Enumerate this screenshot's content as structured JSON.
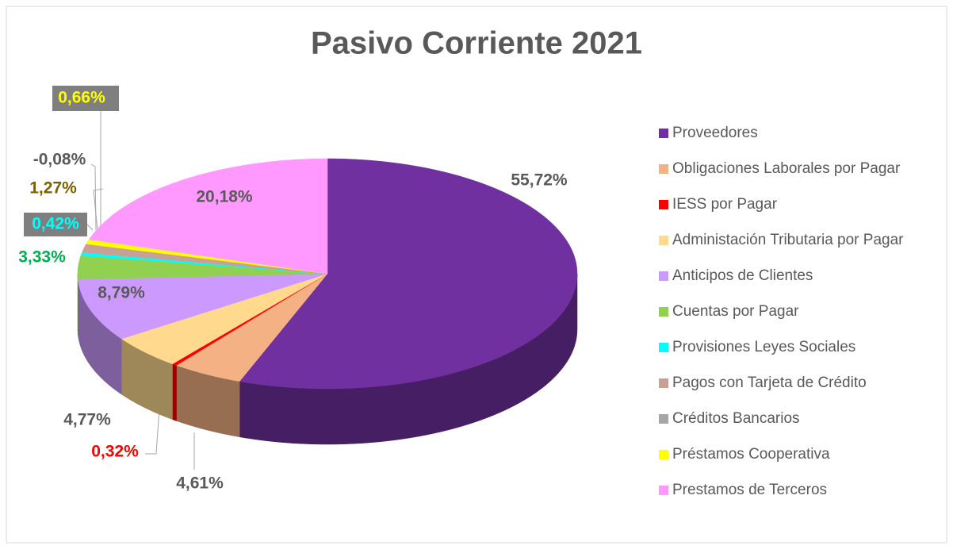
{
  "chart_data": {
    "type": "pie",
    "title": "Pasivo Corriente 2021",
    "categories": [
      "Proveedores",
      "Obligaciones Laborales por Pagar",
      "IESS por Pagar",
      "Administación Tributaria por Pagar",
      "Anticipos de Clientes",
      "Cuentas por Pagar",
      "Provisiones Leyes Sociales",
      "Pagos con Tarjeta de Crédito",
      "Créditos Bancarios",
      "Préstamos Cooperativa",
      "Prestamos de Terceros"
    ],
    "values": [
      55.72,
      4.61,
      0.32,
      4.77,
      8.79,
      3.33,
      0.42,
      1.27,
      -0.08,
      0.66,
      20.18
    ],
    "value_labels": [
      "55,72%",
      "4,61%",
      "0,32%",
      "4,77%",
      "8,79%",
      "3,33%",
      "0,42%",
      "1,27%",
      "-0,08%",
      "0,66%",
      "20,18%"
    ],
    "colors": [
      "#7030a0",
      "#f4b183",
      "#ff0000",
      "#ffd98e",
      "#cc99ff",
      "#92d050",
      "#00ffff",
      "#c9a095",
      "#a6a6a6",
      "#ffff00",
      "#ff99ff"
    ],
    "label_colors": [
      "#595959",
      "#595959",
      "#ff0000",
      "#595959",
      "#595959",
      "#00b050",
      "#00ffff",
      "#7f6000",
      "#595959",
      "#ffff00",
      "#595959"
    ],
    "legend": "right"
  }
}
